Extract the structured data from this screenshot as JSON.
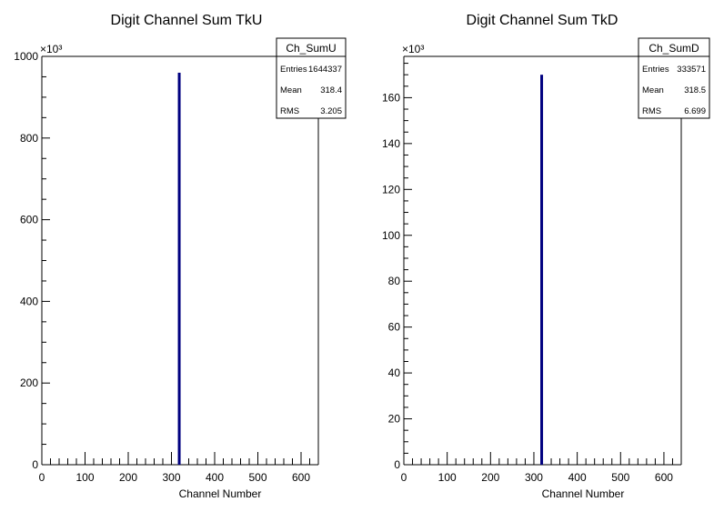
{
  "chart_data": [
    {
      "type": "histogram",
      "title": "Digit Channel Sum TkU",
      "xlabel": "Channel Number",
      "ylabel": "",
      "xlim": [
        0,
        640
      ],
      "ylim": [
        0,
        1000000
      ],
      "y_multiplier_label": "×10³",
      "xticks": [
        "0",
        "100",
        "200",
        "300",
        "400",
        "500",
        "600"
      ],
      "yticks": [
        "0",
        "200",
        "400",
        "600",
        "800",
        "1000"
      ],
      "ytick_values": [
        0,
        200000,
        400000,
        600000,
        800000,
        1000000
      ],
      "line_color": "#000080",
      "spike": {
        "x": 318,
        "value": 960000
      },
      "stats": {
        "name": "Ch_SumU",
        "rows": [
          {
            "label": "Entries",
            "value": "1644337"
          },
          {
            "label": "Mean",
            "value": "318.4"
          },
          {
            "label": "RMS",
            "value": "3.205"
          }
        ]
      }
    },
    {
      "type": "histogram",
      "title": "Digit Channel Sum TkD",
      "xlabel": "Channel Number",
      "ylabel": "",
      "xlim": [
        0,
        640
      ],
      "ylim": [
        0,
        178000
      ],
      "y_multiplier_label": "×10³",
      "xticks": [
        "0",
        "100",
        "200",
        "300",
        "400",
        "500",
        "600"
      ],
      "yticks": [
        "0",
        "20",
        "40",
        "60",
        "80",
        "100",
        "120",
        "140",
        "160"
      ],
      "ytick_values": [
        0,
        20000,
        40000,
        60000,
        80000,
        100000,
        120000,
        140000,
        160000
      ],
      "line_color": "#000080",
      "spike": {
        "x": 318,
        "value": 170000
      },
      "stats": {
        "name": "Ch_SumD",
        "rows": [
          {
            "label": "Entries",
            "value": "333571"
          },
          {
            "label": "Mean",
            "value": "318.5"
          },
          {
            "label": "RMS",
            "value": "6.699"
          }
        ]
      }
    }
  ]
}
